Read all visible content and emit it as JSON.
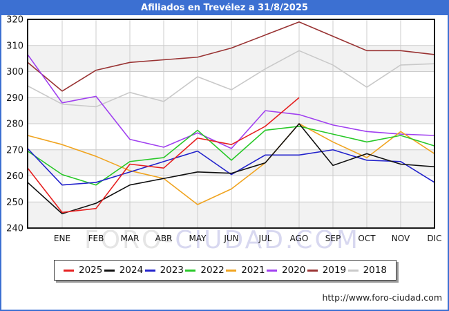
{
  "window": {
    "title": "Afiliados en Trevélez a 31/8/2025"
  },
  "watermark": {
    "left": "FORO-",
    "right": "CIUDAD.COM"
  },
  "footer": {
    "url": "http://www.foro-ciudad.com"
  },
  "theme": {
    "titlebar_bg": "#3c70d2",
    "frame_border": "#3c70d2",
    "grid_color": "#cccccc",
    "band_color": "#f2f2f2",
    "plot_border": "#000000",
    "watermark_left_color": "#e5e5e5",
    "watermark_right_color": "#d8d8f0"
  },
  "chart_data": {
    "type": "line",
    "title": "Afiliados en Trevélez a 31/8/2025",
    "x_labels": [
      "",
      "ENE",
      "FEB",
      "MAR",
      "ABR",
      "MAY",
      "JUN",
      "JUL",
      "AGO",
      "SEP",
      "OCT",
      "NOV",
      "DIC"
    ],
    "ylim": [
      240,
      320
    ],
    "y_ticks": [
      320,
      310,
      300,
      290,
      280,
      270,
      260,
      250,
      240
    ],
    "grid": true,
    "legend_position": "bottom",
    "series": [
      {
        "name": "2025",
        "color": "#e62020",
        "values": [
          263,
          246,
          247.5,
          264.5,
          263,
          274.5,
          272,
          279,
          290,
          null,
          null,
          null,
          null
        ]
      },
      {
        "name": "2024",
        "color": "#101010",
        "values": [
          257.5,
          245.5,
          249.5,
          256.5,
          259,
          261.5,
          261,
          265,
          280,
          264,
          268.5,
          264.5,
          263.5
        ]
      },
      {
        "name": "2023",
        "color": "#2222cc",
        "values": [
          270.5,
          256.5,
          257.5,
          261.5,
          265.5,
          269.5,
          260.5,
          268,
          268,
          270,
          266,
          265.5,
          257.5
        ]
      },
      {
        "name": "2022",
        "color": "#28c828",
        "values": [
          269.5,
          260.5,
          256.5,
          265.5,
          267,
          277.5,
          266,
          277.5,
          279,
          276,
          273,
          275.5,
          271.5
        ]
      },
      {
        "name": "2021",
        "color": "#f0a420",
        "values": [
          275.5,
          272,
          267.5,
          262,
          259,
          249,
          255,
          265,
          280,
          273,
          267,
          277,
          268.5
        ]
      },
      {
        "name": "2020",
        "color": "#a040f0",
        "values": [
          306.5,
          288,
          290.5,
          274,
          271,
          276.5,
          270.5,
          285,
          283.5,
          279.5,
          277,
          276,
          275.5
        ]
      },
      {
        "name": "2019",
        "color": "#993333",
        "values": [
          303.5,
          292.5,
          300.5,
          303.5,
          304.5,
          305.5,
          309,
          314,
          319,
          313.5,
          308,
          308,
          306.5
        ]
      },
      {
        "name": "2018",
        "color": "#c9c9c9",
        "values": [
          294.5,
          287.5,
          286.5,
          292,
          288.5,
          298,
          293,
          301,
          308,
          302.5,
          294,
          302.5,
          303
        ]
      }
    ]
  }
}
